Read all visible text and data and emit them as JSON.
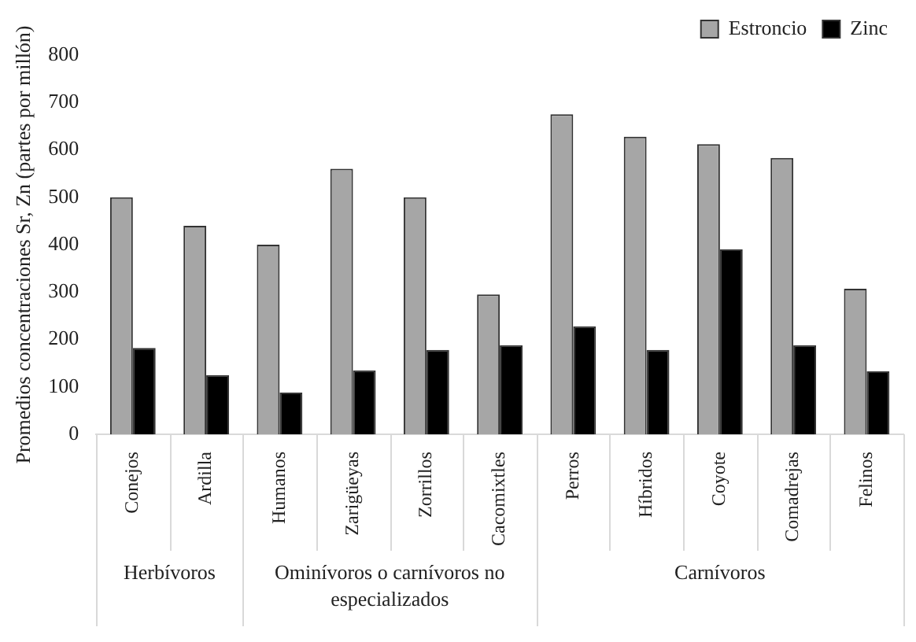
{
  "chart_data": {
    "type": "bar",
    "ylabel": "Promedios concentraciones Sr, Zn (partes por millón)",
    "categories": [
      "Conejos",
      "Ardilla",
      "Humanos",
      "Zarigüeyas",
      "Zorrillos",
      "Cacomixtles",
      "Perros",
      "Híbridos",
      "Coyote",
      "Comadrejas",
      "Felinos"
    ],
    "series": [
      {
        "name": "Estroncio",
        "color": "#a6a6a6",
        "values": [
          500,
          440,
          400,
          560,
          500,
          295,
          675,
          628,
          612,
          583,
          307
        ]
      },
      {
        "name": "Zinc",
        "color": "#000000",
        "values": [
          182,
          125,
          88,
          135,
          178,
          188,
          228,
          178,
          390,
          188,
          133
        ]
      }
    ],
    "ylim": [
      0,
      800
    ],
    "yticks": [
      0,
      100,
      200,
      300,
      400,
      500,
      600,
      700,
      800
    ],
    "grid": false,
    "legend": "top right",
    "annotations": [
      "Herbívoros",
      "Ominívoros o carnívoros no especializados",
      "Carnívoros"
    ]
  }
}
